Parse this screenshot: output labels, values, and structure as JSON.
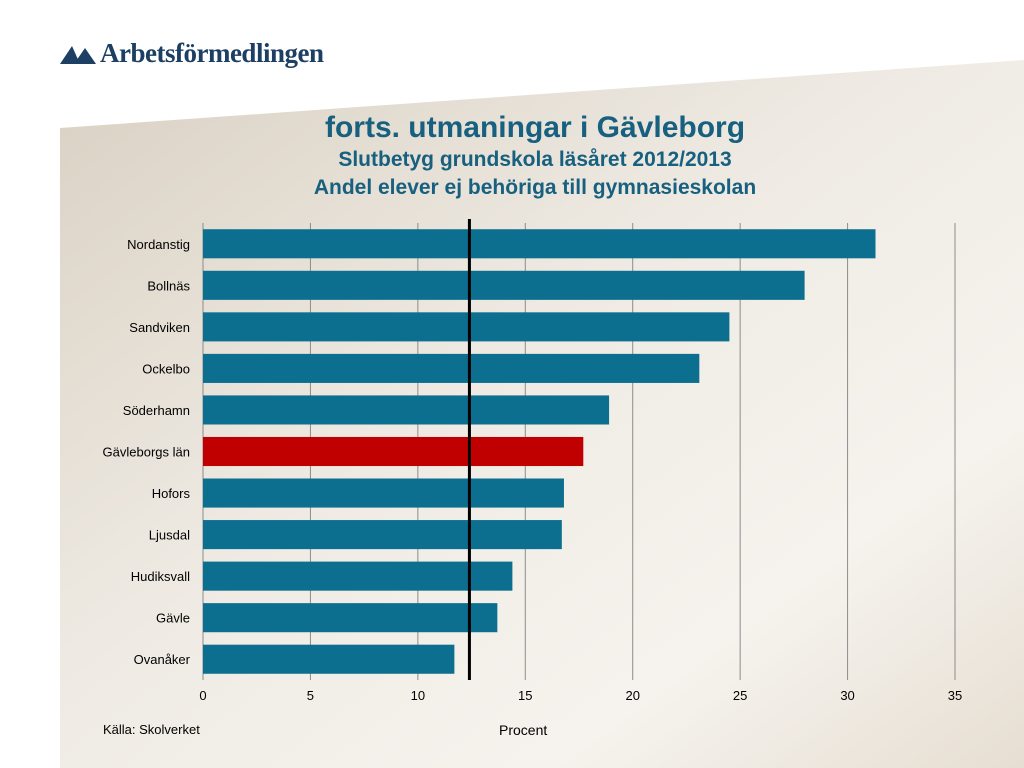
{
  "logo": {
    "text": "Arbetsförmedlingen"
  },
  "header": {
    "title": "forts. utmaningar i Gävleborg",
    "subtitle": "Slutbetyg grundskola läsåret 2012/2013",
    "subtitle2": "Andel elever ej behöriga till gymnasieskolan"
  },
  "footer": {
    "source": "Källa: Skolverket"
  },
  "colors": {
    "bar": "#0d6f8f",
    "highlight": "#c00000",
    "title": "#17607f",
    "grid": "#8c8c8c",
    "reference_line": "#000000"
  },
  "chart_data": {
    "type": "bar",
    "orientation": "horizontal",
    "categories": [
      "Nordanstig",
      "Bollnäs",
      "Sandviken",
      "Ockelbo",
      "Söderhamn",
      "Gävleborgs län",
      "Hofors",
      "Ljusdal",
      "Hudiksvall",
      "Gävle",
      "Ovanåker"
    ],
    "values": [
      31.3,
      28.0,
      24.5,
      23.1,
      18.9,
      17.7,
      16.8,
      16.7,
      14.4,
      13.7,
      11.7
    ],
    "highlight": "Gävleborgs län",
    "reference_line": 12.4,
    "xlabel": "Procent",
    "xlim": [
      0,
      35
    ],
    "xticks": [
      0,
      5,
      10,
      15,
      20,
      25,
      30,
      35
    ],
    "grid": true
  }
}
